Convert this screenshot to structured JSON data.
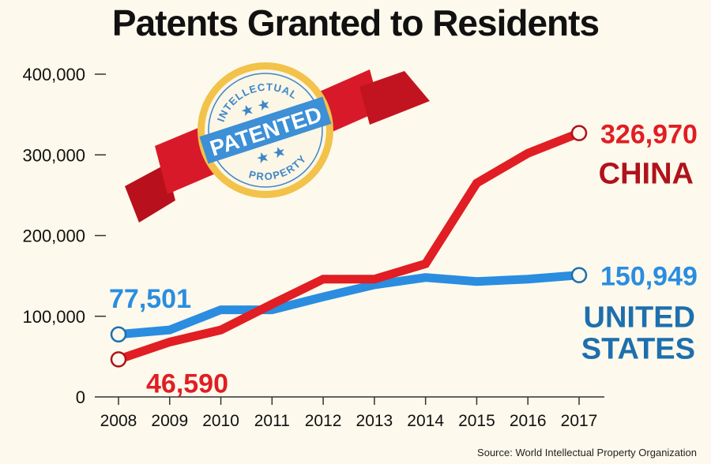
{
  "chart_data": {
    "type": "line",
    "title": "Patents Granted to Residents",
    "xlabel": "",
    "ylabel": "",
    "x": [
      "2008",
      "2009",
      "2010",
      "2011",
      "2012",
      "2013",
      "2014",
      "2015",
      "2016",
      "2017"
    ],
    "ylim": [
      0,
      400000
    ],
    "yticks": [
      0,
      100000,
      200000,
      300000,
      400000
    ],
    "ytick_labels": [
      "0",
      "100,000",
      "200,000",
      "300,000",
      "400,000"
    ],
    "grid": false,
    "series": [
      {
        "name": "CHINA",
        "color": "#e01e24",
        "label_color": "#b0121b",
        "values": [
          46590,
          68000,
          83000,
          115000,
          146000,
          146000,
          165000,
          265000,
          302000,
          326970
        ],
        "start_label": "46,590",
        "end_label": "326,970"
      },
      {
        "name": "UNITED STATES",
        "name_lines": [
          "UNITED",
          "STATES"
        ],
        "color": "#2a8de0",
        "label_color": "#1d6fae",
        "values": [
          77501,
          83000,
          108000,
          108000,
          124000,
          139000,
          148000,
          143000,
          146000,
          150949
        ],
        "start_label": "77,501",
        "end_label": "150,949"
      }
    ],
    "annotations": {
      "badge_text": "PATENTED",
      "badge_top": "INTELLECTUAL",
      "badge_bottom": "PROPERTY"
    },
    "source": "Source: World Intellectual Property Organization"
  }
}
